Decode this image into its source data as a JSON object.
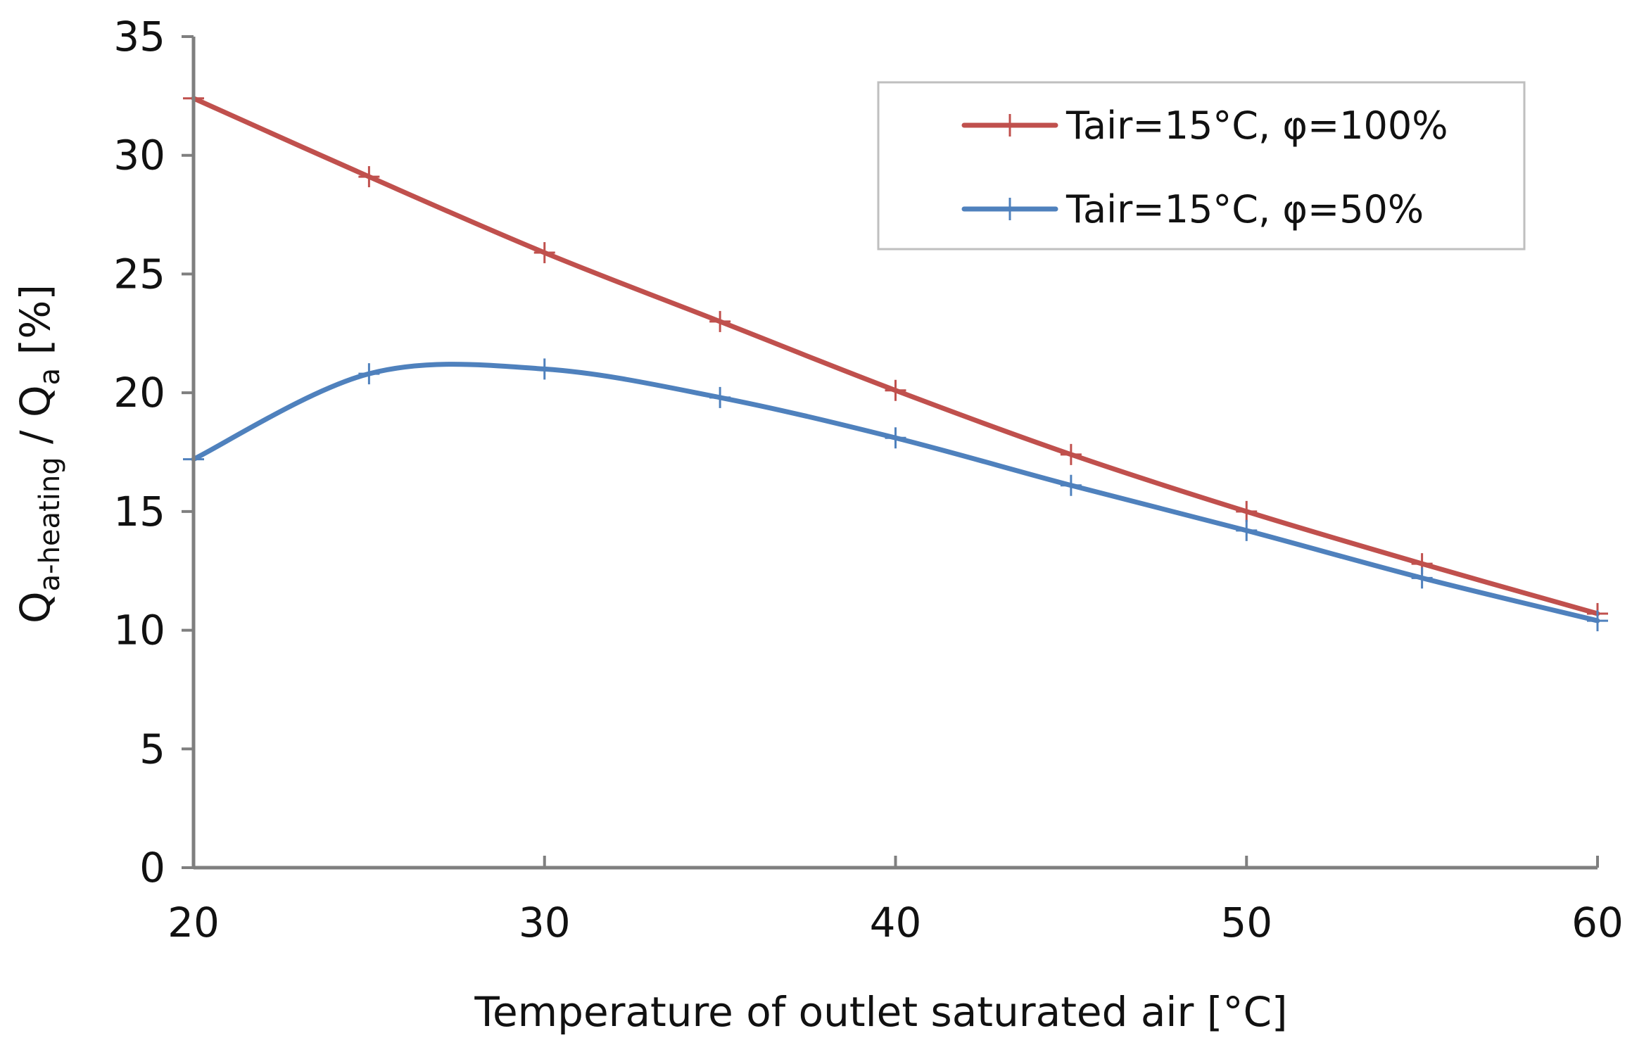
{
  "chart_data": {
    "type": "line",
    "title": "",
    "xlabel": "Temperature of outlet saturated air [°C]",
    "ylabel": {
      "main1": "Q",
      "sub1": "a-heating",
      "sep": " / Q",
      "sub2": "a",
      "unit": "  [%]"
    },
    "xlim": [
      20,
      60
    ],
    "ylim": [
      0,
      35
    ],
    "xticks": [
      20,
      30,
      40,
      50,
      60
    ],
    "yticks": [
      0,
      5,
      10,
      15,
      20,
      25,
      30,
      35
    ],
    "grid": false,
    "legend_position": "top-right",
    "x": [
      20,
      25,
      30,
      35,
      40,
      45,
      50,
      55,
      60
    ],
    "series": [
      {
        "name": "Tair=15°C, φ=100%",
        "color": "#c0504d",
        "values": [
          32.4,
          29.1,
          25.9,
          23.0,
          20.1,
          17.4,
          15.0,
          12.8,
          10.7
        ]
      },
      {
        "name": "Tair=15°C, φ=50%",
        "color": "#4f81bd",
        "values": [
          17.2,
          20.8,
          21.0,
          19.8,
          18.1,
          16.1,
          14.2,
          12.2,
          10.4
        ]
      }
    ]
  }
}
